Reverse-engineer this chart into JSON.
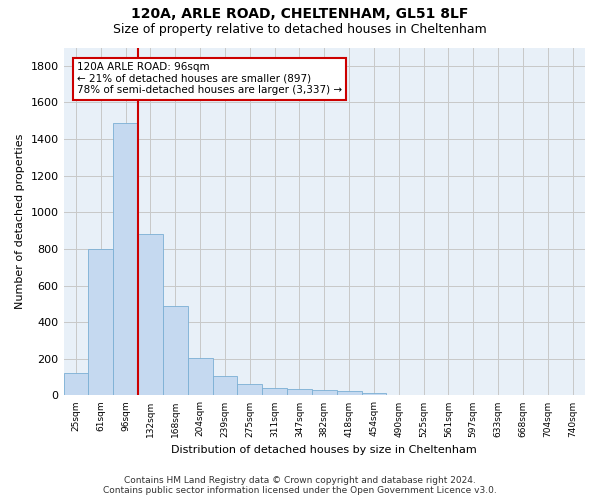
{
  "title": "120A, ARLE ROAD, CHELTENHAM, GL51 8LF",
  "subtitle": "Size of property relative to detached houses in Cheltenham",
  "xlabel": "Distribution of detached houses by size in Cheltenham",
  "ylabel": "Number of detached properties",
  "footer_line1": "Contains HM Land Registry data © Crown copyright and database right 2024.",
  "footer_line2": "Contains public sector information licensed under the Open Government Licence v3.0.",
  "categories": [
    "25sqm",
    "61sqm",
    "96sqm",
    "132sqm",
    "168sqm",
    "204sqm",
    "239sqm",
    "275sqm",
    "311sqm",
    "347sqm",
    "382sqm",
    "418sqm",
    "454sqm",
    "490sqm",
    "525sqm",
    "561sqm",
    "597sqm",
    "633sqm",
    "668sqm",
    "704sqm",
    "740sqm"
  ],
  "values": [
    125,
    800,
    1490,
    880,
    490,
    205,
    105,
    65,
    40,
    35,
    28,
    22,
    15,
    0,
    0,
    0,
    0,
    0,
    0,
    0,
    0
  ],
  "bar_color": "#c5d9f0",
  "bar_edge_color": "#7bafd4",
  "grid_color": "#c8c8c8",
  "vline_x_index": 2,
  "vline_color": "#cc0000",
  "annotation_line1": "120A ARLE ROAD: 96sqm",
  "annotation_line2": "← 21% of detached houses are smaller (897)",
  "annotation_line3": "78% of semi-detached houses are larger (3,337) →",
  "annotation_box_color": "#cc0000",
  "ylim": [
    0,
    1900
  ],
  "yticks": [
    0,
    200,
    400,
    600,
    800,
    1000,
    1200,
    1400,
    1600,
    1800
  ],
  "figsize": [
    6.0,
    5.0
  ],
  "dpi": 100,
  "bg_color": "#ffffff",
  "title_fontsize": 10,
  "subtitle_fontsize": 9
}
